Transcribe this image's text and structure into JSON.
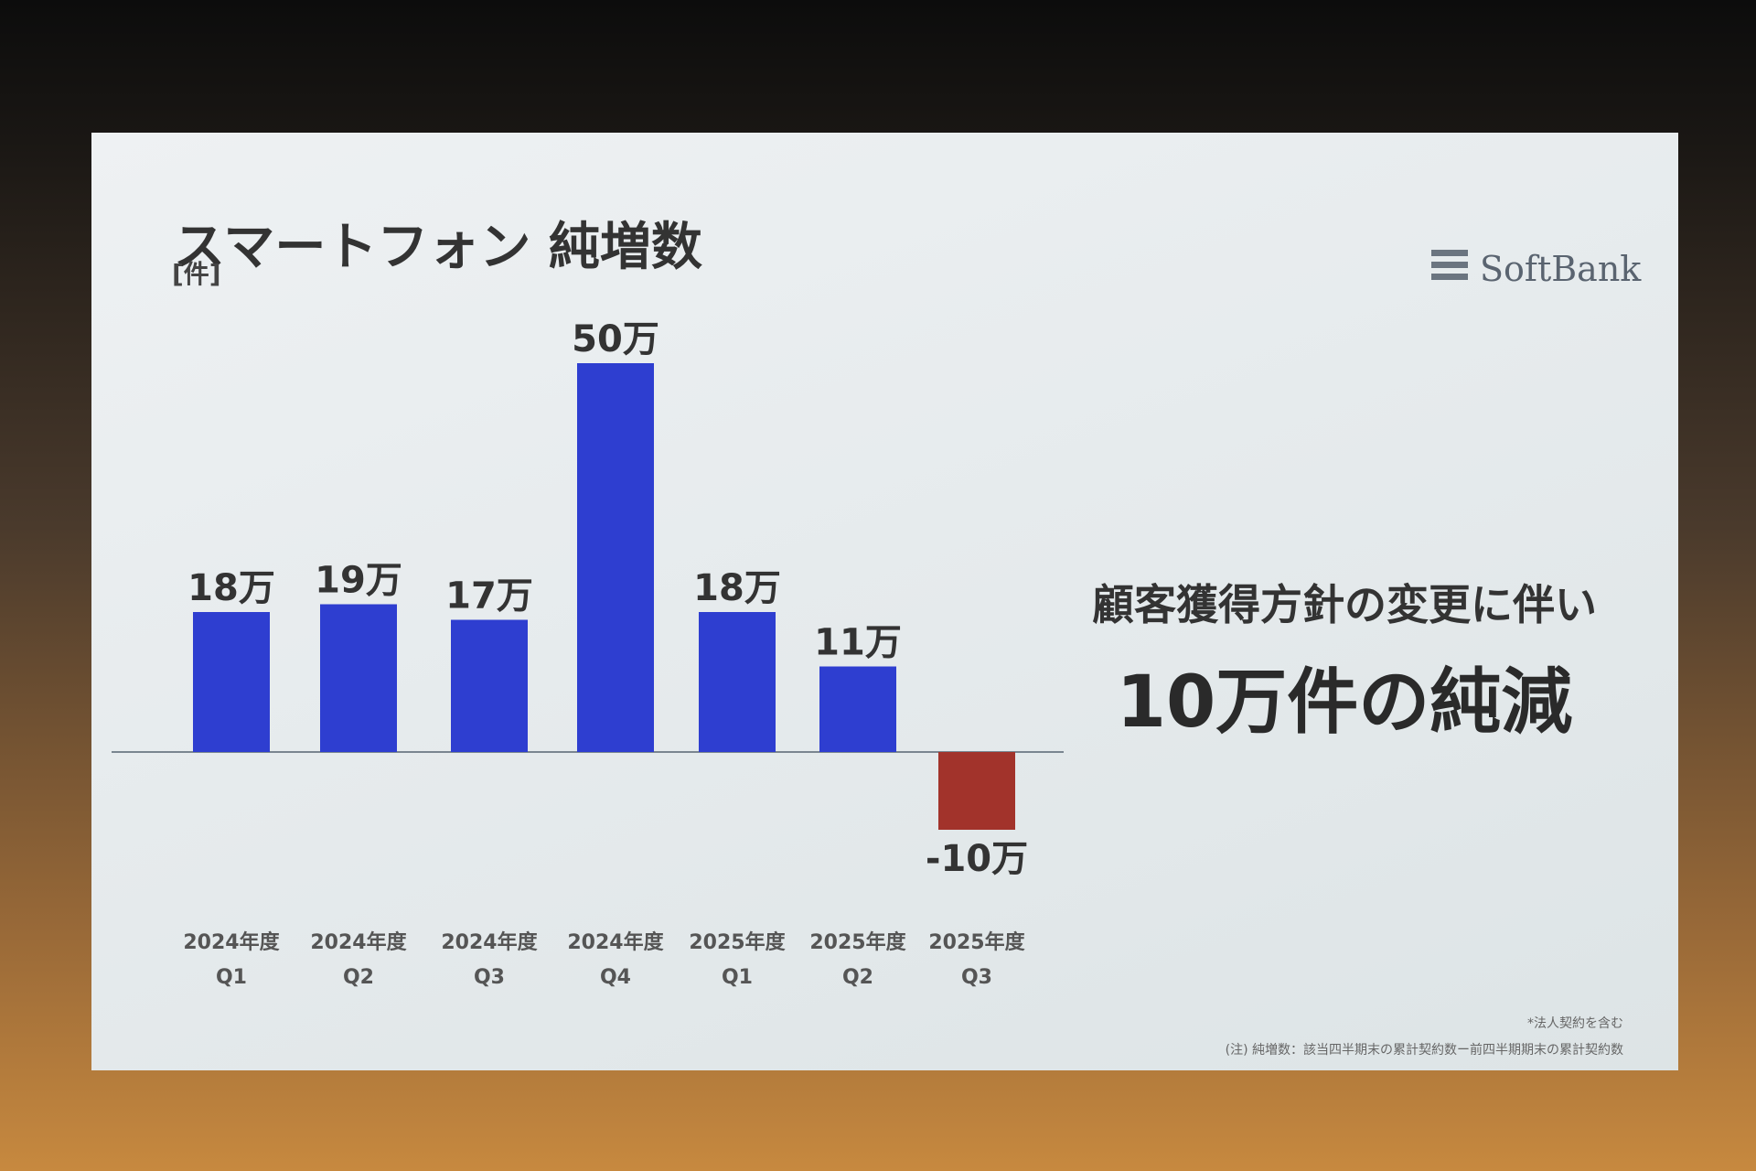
{
  "chart_data": {
    "type": "bar",
    "title": "スマートフォン 純増数",
    "unit_label": "[件]",
    "logo": "SoftBank",
    "categories": [
      "2024年度\nQ1",
      "2024年度\nQ2",
      "2024年度\nQ3",
      "2024年度\nQ4",
      "2025年度\nQ1",
      "2025年度\nQ2",
      "2025年度\nQ3"
    ],
    "values": [
      18,
      19,
      17,
      50,
      18,
      11,
      -10
    ],
    "value_labels": [
      "18万",
      "19万",
      "17万",
      "50万",
      "18万",
      "11万",
      "-10万"
    ],
    "colors": [
      "#2e3ed0",
      "#2e3ed0",
      "#2e3ed0",
      "#2e3ed0",
      "#2e3ed0",
      "#2e3ed0",
      "#a2332b"
    ],
    "annotations": [
      "顧客獲得方針の変更に伴い",
      "10万件の純減"
    ],
    "footnotes": [
      "*法人契約を含む",
      "(注) 純増数：該当四半期末の累計契約数ー前四半期期末の累計契約数"
    ]
  }
}
